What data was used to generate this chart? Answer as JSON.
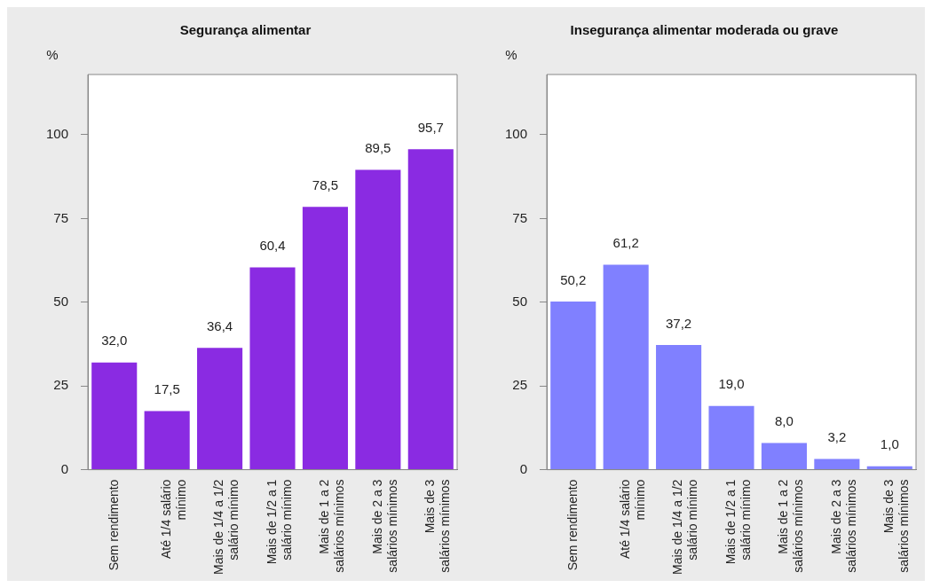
{
  "chart_data": [
    {
      "type": "bar",
      "title": "Segurança alimentar",
      "ylabel": "%",
      "categories": [
        "Sem rendimento",
        "Até 1/4 salário mínimo",
        "Mais de 1/4 a 1/2 salário mínimo",
        "Mais de 1/2 a 1 salário mínimo",
        "Mais de 1 a 2 salários mínimos",
        "Mais de 2 a 3 salários mínimos",
        "Mais de 3 salários mínimos"
      ],
      "values": [
        32.0,
        17.5,
        36.4,
        60.4,
        78.5,
        89.5,
        95.7
      ],
      "value_labels": [
        "32,0",
        "17,5",
        "36,4",
        "60,4",
        "78,5",
        "89,5",
        "95,7"
      ],
      "color": "#8a2be2",
      "ylim": [
        0,
        118
      ],
      "yticks": [
        0,
        25,
        50,
        75,
        100
      ],
      "grid": false,
      "legend": false
    },
    {
      "type": "bar",
      "title": "Insegurança alimentar moderada ou grave",
      "ylabel": "%",
      "categories": [
        "Sem rendimento",
        "Até 1/4 salário mínimo",
        "Mais de 1/4 a 1/2 salário mínimo",
        "Mais de 1/2 a 1 salário mínimo",
        "Mais de 1 a 2 salários mínimos",
        "Mais de 2 a 3 salários mínimos",
        "Mais de 3 salários mínimos"
      ],
      "values": [
        50.2,
        61.2,
        37.2,
        19.0,
        8.0,
        3.2,
        1.0
      ],
      "value_labels": [
        "50,2",
        "61,2",
        "37,2",
        "19,0",
        "8,0",
        "3,2",
        "1,0"
      ],
      "color": "#8080ff",
      "ylim": [
        0,
        118
      ],
      "yticks": [
        0,
        25,
        50,
        75,
        100
      ],
      "grid": false,
      "legend": false
    }
  ]
}
